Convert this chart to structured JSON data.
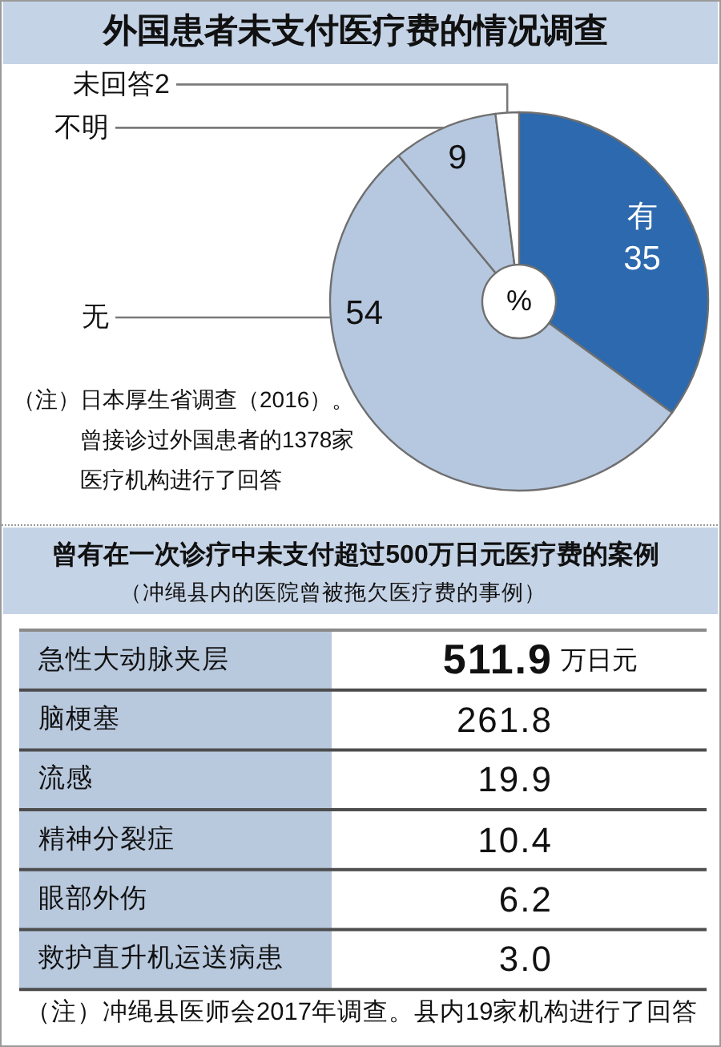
{
  "chart_data": [
    {
      "type": "donut",
      "title": "外国患者未支付医疗费的情况调查",
      "categories": [
        "有",
        "无",
        "不明",
        "未回答"
      ],
      "values": [
        35,
        54,
        9,
        2
      ],
      "colors": [
        "#2c69ae",
        "#b6c8e0",
        "#b6c8e0",
        "#ffffff"
      ],
      "data_labels": true,
      "annotations": [
        "%",
        "（注）日本厚生省调查（2016）。曾接诊过外国患者的1378家医疗机构进行了回答"
      ]
    },
    {
      "type": "other",
      "title": "曾有在一次诊疗中未支付超过500万日元医疗费的案例",
      "subtitle": "（冲绳县内的医院曾被拖欠医疗费的事例）",
      "categories": [
        "急性大动脉夹层",
        "脑梗塞",
        "流感",
        "精神分裂症",
        "眼部外伤",
        "救护直升机运送病患"
      ],
      "values": [
        511.9,
        261.8,
        19.9,
        10.4,
        6.2,
        3.0
      ],
      "value_labels": [
        "511.9",
        "261.8",
        "19.9",
        "10.4",
        "6.2",
        "3.0"
      ],
      "annotations": [
        "万日元",
        "（注）冲绳县医师会2017年调查。县内19家机构进行了回答"
      ]
    }
  ]
}
